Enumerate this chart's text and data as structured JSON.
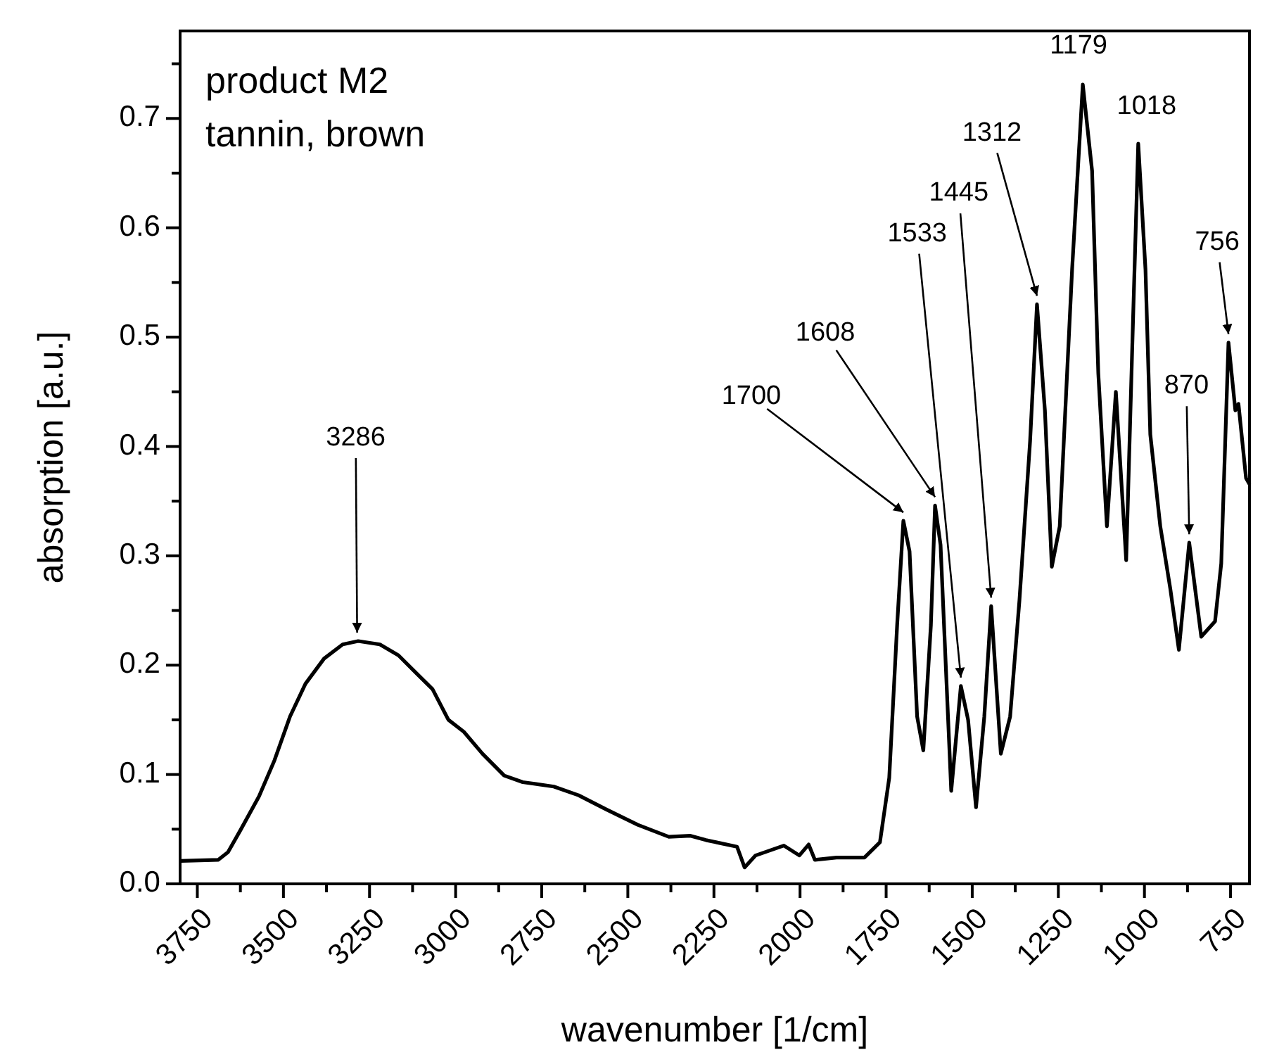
{
  "chart_data": {
    "type": "line",
    "xlabel": "wavenumber [1/cm]",
    "ylabel": "absorption [a.u.]",
    "xlim": [
      3800,
      695
    ],
    "ylim": [
      0,
      0.78
    ],
    "xticks": [
      3750,
      {
        "value": 3625,
        "label": null
      },
      3500,
      {
        "value": 3375,
        "label": null
      },
      3250,
      {
        "value": 3125,
        "label": null
      },
      3000,
      {
        "value": 2875,
        "label": null
      },
      2750,
      {
        "value": 2625,
        "label": null
      },
      2500,
      {
        "value": 2375,
        "label": null
      },
      2250,
      {
        "value": 2125,
        "label": null
      },
      2000,
      {
        "value": 1875,
        "label": null
      },
      1750,
      {
        "value": 1625,
        "label": null
      },
      1500,
      {
        "value": 1375,
        "label": null
      },
      1250,
      {
        "value": 1125,
        "label": null
      },
      1000,
      {
        "value": 875,
        "label": null
      },
      750
    ],
    "yticks": [
      {
        "value": 0,
        "label": "0.0"
      },
      {
        "value": 0.05,
        "label": null
      },
      0.1,
      {
        "value": 0.15,
        "label": null
      },
      0.2,
      {
        "value": 0.25,
        "label": null
      },
      0.3,
      {
        "value": 0.35,
        "label": null
      },
      0.4,
      {
        "value": 0.45,
        "label": null
      },
      0.5,
      {
        "value": 0.55,
        "label": null
      },
      0.6,
      {
        "value": 0.65,
        "label": null
      },
      0.7,
      {
        "value": 0.75,
        "label": null
      }
    ],
    "grid": false,
    "marker": "none",
    "line_style": "solid",
    "series": [
      {
        "color": "#000000",
        "x": [
          3797,
          3689,
          3661,
          3625,
          3571,
          3526,
          3481,
          3436,
          3382,
          3328,
          3283,
          3220,
          3166,
          3112,
          3067,
          3021,
          2976,
          2922,
          2859,
          2805,
          2715,
          2643,
          2562,
          2471,
          2381,
          2318,
          2273,
          2183,
          2161,
          2129,
          2047,
          2002,
          1975,
          1957,
          1894,
          1813,
          1768,
          1741,
          1718,
          1700,
          1682,
          1660,
          1642,
          1620,
          1608,
          1592,
          1561,
          1533,
          1512,
          1489,
          1465,
          1445,
          1417,
          1390,
          1363,
          1332,
          1312,
          1289,
          1269,
          1246,
          1210,
          1179,
          1152,
          1134,
          1109,
          1083,
          1053,
          1033,
          1018,
          997,
          983,
          954,
          925,
          900,
          870,
          835,
          795,
          777,
          756,
          736,
          727,
          705,
          696
        ],
        "values": [
          0.021,
          0.022,
          0.029,
          0.049,
          0.08,
          0.113,
          0.153,
          0.183,
          0.206,
          0.219,
          0.222,
          0.219,
          0.209,
          0.192,
          0.178,
          0.15,
          0.139,
          0.119,
          0.099,
          0.093,
          0.089,
          0.081,
          0.068,
          0.054,
          0.043,
          0.044,
          0.04,
          0.034,
          0.015,
          0.026,
          0.035,
          0.026,
          0.036,
          0.022,
          0.024,
          0.024,
          0.038,
          0.097,
          0.237,
          0.332,
          0.304,
          0.153,
          0.122,
          0.237,
          0.346,
          0.31,
          0.085,
          0.181,
          0.15,
          0.07,
          0.153,
          0.254,
          0.119,
          0.153,
          0.259,
          0.405,
          0.53,
          0.433,
          0.29,
          0.327,
          0.562,
          0.731,
          0.652,
          0.467,
          0.327,
          0.45,
          0.296,
          0.517,
          0.677,
          0.562,
          0.411,
          0.327,
          0.27,
          0.214,
          0.312,
          0.226,
          0.24,
          0.293,
          0.495,
          0.433,
          0.439,
          0.371,
          0.366
        ]
      }
    ],
    "annotations": [
      "product M2",
      "tannin, brown",
      {
        "text": "3286",
        "x": 3286,
        "y": 0.222
      },
      {
        "text": "1700",
        "x": 1700,
        "y": 0.332
      },
      {
        "text": "1608",
        "x": 1608,
        "y": 0.346
      },
      {
        "text": "1533",
        "x": 1533,
        "y": 0.181
      },
      {
        "text": "1445",
        "x": 1445,
        "y": 0.254
      },
      {
        "text": "1312",
        "x": 1312,
        "y": 0.53
      },
      {
        "text": "1179",
        "x": 1179,
        "y": 0.731
      },
      {
        "text": "1018",
        "x": 1018,
        "y": 0.677
      },
      {
        "text": "870",
        "x": 870,
        "y": 0.312
      },
      {
        "text": "756",
        "x": 756,
        "y": 0.495
      }
    ]
  }
}
